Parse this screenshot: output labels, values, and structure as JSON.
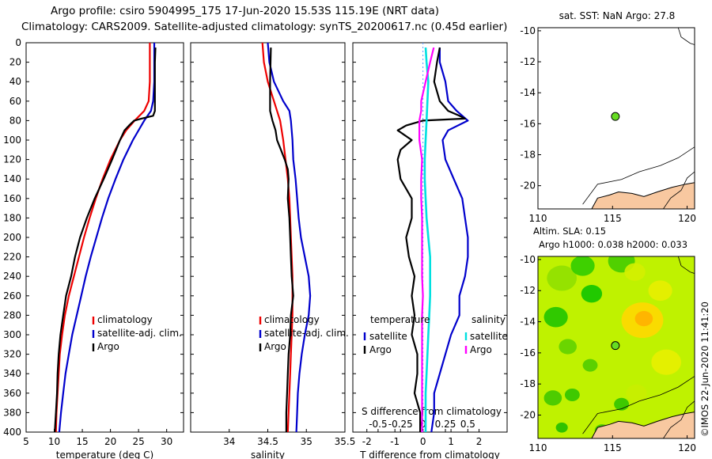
{
  "header": {
    "title_line1": "Argo profile: csiro 5904995_175 17-Jun-2020 15.53S 115.19E (NRT data)",
    "title_line2": "Climatology: CARS2009. Satellite-adjusted climatology: synTS_20200617.nc (0.45d earlier)"
  },
  "colors": {
    "climatology": "#ee0000",
    "satellite": "#0000cc",
    "argo": "#000000",
    "sat_diff_sal": "#00e0e0",
    "argo_diff_sal": "#ff00ff",
    "land": "#f8c8a0"
  },
  "chart_data": [
    {
      "type": "line",
      "title": "",
      "xlabel": "temperature (deg C)",
      "ylabel": "",
      "xlim": [
        5,
        33
      ],
      "ylim": [
        400,
        0
      ],
      "xticks": [
        "5",
        "10",
        "15",
        "20",
        "25",
        "30"
      ],
      "yticks": [
        "0",
        "20",
        "40",
        "60",
        "80",
        "100",
        "120",
        "140",
        "160",
        "180",
        "200",
        "220",
        "240",
        "260",
        "280",
        "300",
        "320",
        "340",
        "360",
        "380",
        "400"
      ],
      "legend": [
        "climatology",
        "satellite-adj. clim.",
        "Argo"
      ],
      "series": [
        {
          "name": "climatology",
          "color": "#ee0000",
          "depth": [
            0,
            20,
            40,
            60,
            70,
            80,
            90,
            100,
            120,
            140,
            160,
            180,
            200,
            220,
            240,
            260,
            280,
            300,
            320,
            340,
            360,
            380,
            400
          ],
          "values": [
            27.0,
            27.0,
            27.0,
            26.8,
            26.0,
            24.3,
            22.8,
            21.7,
            20.0,
            18.6,
            17.4,
            16.3,
            15.3,
            14.4,
            13.5,
            12.6,
            11.9,
            11.4,
            11.0,
            10.8,
            10.6,
            10.4,
            10.3
          ]
        },
        {
          "name": "satellite-adj. clim.",
          "color": "#0000cc",
          "depth": [
            0,
            20,
            40,
            60,
            70,
            80,
            100,
            120,
            140,
            160,
            180,
            200,
            220,
            240,
            260,
            280,
            300,
            320,
            340,
            360,
            380,
            400
          ],
          "values": [
            27.8,
            27.8,
            27.8,
            27.6,
            27.2,
            26.0,
            24.0,
            22.3,
            20.9,
            19.6,
            18.5,
            17.5,
            16.5,
            15.6,
            14.8,
            14.0,
            13.2,
            12.6,
            12.0,
            11.6,
            11.2,
            10.9
          ]
        },
        {
          "name": "Argo",
          "color": "#000000",
          "depth": [
            5,
            20,
            40,
            60,
            70,
            75,
            78,
            80,
            85,
            90,
            100,
            110,
            120,
            140,
            160,
            180,
            200,
            220,
            240,
            260,
            280,
            300,
            320,
            340,
            360,
            380,
            400
          ],
          "values": [
            28.0,
            27.9,
            27.9,
            27.9,
            27.9,
            27.6,
            25.5,
            24.2,
            23.3,
            22.5,
            21.7,
            21.0,
            20.3,
            18.8,
            17.2,
            15.8,
            14.6,
            13.7,
            13.0,
            12.1,
            11.6,
            11.1,
            10.8,
            10.6,
            10.5,
            10.3,
            10.1
          ]
        }
      ]
    },
    {
      "type": "line",
      "title": "",
      "xlabel": "salinity",
      "ylabel": "",
      "xlim": [
        33.5,
        35.5
      ],
      "ylim": [
        400,
        0
      ],
      "xticks": [
        "34",
        "34.5",
        "35",
        "35.5"
      ],
      "legend": [
        "climatology",
        "satellite-adj. clim.",
        "Argo"
      ],
      "series": [
        {
          "name": "climatology",
          "color": "#ee0000",
          "depth": [
            0,
            20,
            40,
            60,
            80,
            100,
            120,
            140,
            160,
            180,
            200,
            220,
            240,
            260,
            280,
            300,
            320,
            340,
            360,
            380,
            400
          ],
          "values": [
            34.43,
            34.45,
            34.5,
            34.58,
            34.66,
            34.7,
            34.73,
            34.76,
            34.78,
            34.79,
            34.8,
            34.81,
            34.82,
            34.82,
            34.82,
            34.81,
            34.8,
            34.79,
            34.78,
            34.77,
            34.76
          ]
        },
        {
          "name": "satellite-adj. clim.",
          "color": "#0000cc",
          "depth": [
            0,
            20,
            40,
            60,
            70,
            80,
            100,
            120,
            140,
            160,
            180,
            200,
            220,
            240,
            260,
            280,
            300,
            320,
            340,
            360,
            380,
            400
          ],
          "values": [
            34.5,
            34.52,
            34.58,
            34.7,
            34.78,
            34.8,
            34.82,
            34.83,
            34.86,
            34.88,
            34.9,
            34.93,
            34.98,
            35.03,
            35.05,
            35.03,
            34.98,
            34.94,
            34.91,
            34.89,
            34.88,
            34.87
          ]
        },
        {
          "name": "Argo",
          "color": "#000000",
          "depth": [
            5,
            40,
            70,
            80,
            90,
            100,
            110,
            120,
            130,
            140,
            160,
            180,
            200,
            220,
            240,
            260,
            280,
            300,
            320,
            340,
            360,
            380,
            400
          ],
          "values": [
            34.54,
            34.53,
            34.53,
            34.56,
            34.6,
            34.62,
            34.67,
            34.72,
            34.76,
            34.77,
            34.76,
            34.78,
            34.79,
            34.8,
            34.81,
            34.83,
            34.8,
            34.79,
            34.77,
            34.76,
            34.75,
            34.74,
            34.74
          ]
        }
      ]
    },
    {
      "type": "line",
      "title": "",
      "xlabel": "T difference from climatology",
      "xlabel2": "S difference from climatology",
      "xlim": [
        -2.5,
        3.0
      ],
      "ylim": [
        400,
        0
      ],
      "xticks": [
        "-2",
        "-1",
        "0",
        "1",
        "2"
      ],
      "xticks2": [
        "-0.5",
        "-0.25",
        "0",
        "0.25",
        "0.5"
      ],
      "legend_left_title": "temperature",
      "legend_right_title": "salinity",
      "legend_left": [
        "satellite",
        "Argo"
      ],
      "legend_right": [
        "satellite",
        "Argo"
      ],
      "series": [
        {
          "name": "temperature satellite",
          "color": "#0000cc",
          "depth": [
            5,
            20,
            40,
            60,
            70,
            80,
            90,
            100,
            120,
            140,
            160,
            180,
            200,
            220,
            240,
            260,
            280,
            300,
            320,
            340,
            360,
            380,
            400
          ],
          "values": [
            0.6,
            0.6,
            0.8,
            0.9,
            1.2,
            1.6,
            0.9,
            0.7,
            0.8,
            1.1,
            1.4,
            1.5,
            1.6,
            1.6,
            1.5,
            1.3,
            1.3,
            1.0,
            0.8,
            0.6,
            0.4,
            0.4,
            0.3
          ]
        },
        {
          "name": "temperature Argo",
          "color": "#000000",
          "depth": [
            5,
            20,
            40,
            60,
            70,
            75,
            78,
            80,
            85,
            90,
            100,
            110,
            120,
            140,
            160,
            180,
            200,
            220,
            240,
            260,
            280,
            300,
            320,
            340,
            360,
            380,
            400
          ],
          "values": [
            0.6,
            0.5,
            0.4,
            0.6,
            0.9,
            1.3,
            1.5,
            0.0,
            -0.6,
            -0.9,
            -0.4,
            -0.8,
            -0.9,
            -0.8,
            -0.4,
            -0.4,
            -0.6,
            -0.5,
            -0.3,
            -0.4,
            -0.3,
            -0.4,
            -0.2,
            -0.2,
            -0.3,
            -0.1,
            -0.1
          ]
        },
        {
          "name": "salinity satellite",
          "color": "#00e0e0",
          "depth": [
            5,
            20,
            40,
            60,
            80,
            100,
            120,
            140,
            160,
            180,
            200,
            220,
            240,
            260,
            280,
            300,
            320,
            340,
            360,
            380,
            400
          ],
          "values": [
            0.03,
            0.04,
            0.06,
            0.05,
            0.04,
            0.03,
            0.02,
            0.02,
            0.03,
            0.04,
            0.06,
            0.08,
            0.08,
            0.08,
            0.07,
            0.06,
            0.05,
            0.04,
            0.03,
            0.03,
            0.03
          ]
        },
        {
          "name": "salinity Argo",
          "color": "#ff00ff",
          "depth": [
            5,
            20,
            40,
            60,
            70,
            80,
            100,
            120,
            140,
            160,
            180,
            200,
            220,
            240,
            260,
            280,
            300,
            320,
            340,
            360,
            380,
            400
          ],
          "values": [
            0.12,
            0.08,
            0.03,
            -0.02,
            -0.02,
            -0.04,
            -0.04,
            -0.01,
            -0.02,
            -0.02,
            -0.01,
            -0.01,
            -0.01,
            -0.01,
            0.0,
            -0.01,
            -0.01,
            -0.01,
            -0.01,
            -0.01,
            -0.01,
            -0.01
          ]
        }
      ]
    },
    {
      "type": "scatter",
      "title": "sat. SST: NaN Argo: 27.8",
      "xlim": [
        110,
        120.5
      ],
      "ylim": [
        -21.5,
        -9.8
      ],
      "xticks": [
        "110",
        "115",
        "120"
      ],
      "yticks": [
        "-10",
        "-12",
        "-14",
        "-16",
        "-18",
        "-20"
      ],
      "points": [
        {
          "x": 115.19,
          "y": -15.53
        }
      ]
    },
    {
      "type": "heatmap",
      "title": "Altim. SLA: 0.15",
      "subtitle": "Argo h1000: 0.038 h2000: 0.033",
      "xlim": [
        110,
        120.5
      ],
      "ylim": [
        -21.5,
        -9.8
      ],
      "xticks": [
        "110",
        "115",
        "120"
      ],
      "yticks": [
        "-10",
        "-12",
        "-14",
        "-16",
        "-18",
        "-20"
      ],
      "points": [
        {
          "x": 115.19,
          "y": -15.53
        }
      ]
    }
  ],
  "credit": "©IMOS 22-Jun-2020 11:41:20"
}
